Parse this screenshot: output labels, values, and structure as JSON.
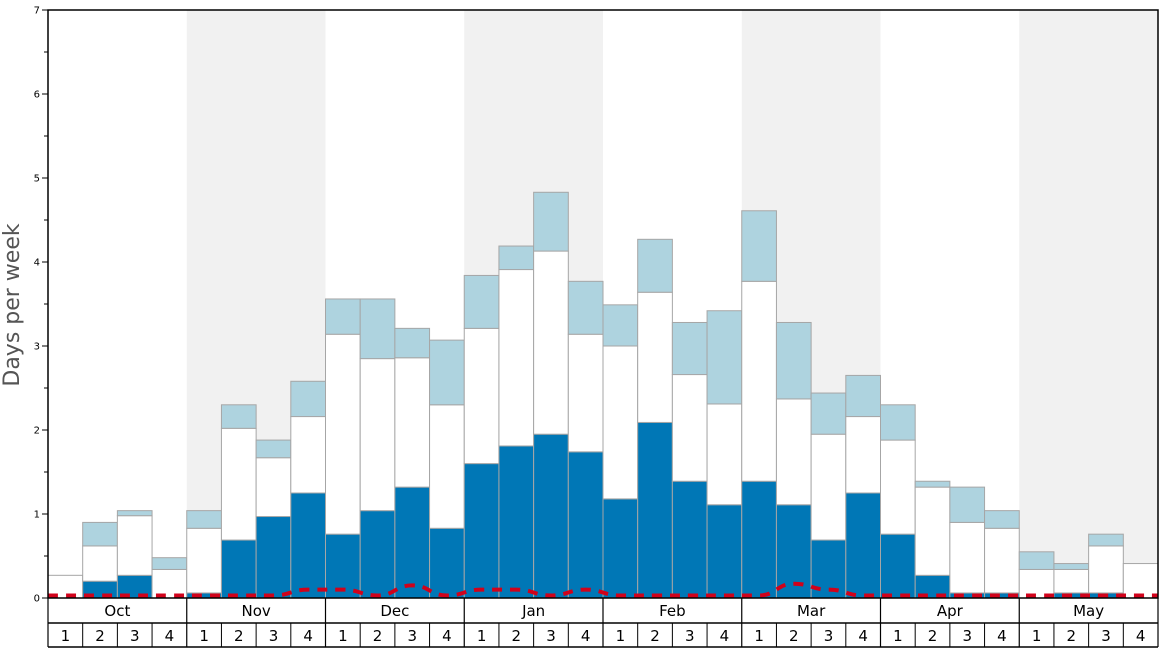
{
  "chart_data": {
    "type": "bar",
    "stacked": true,
    "ylabel": "Days per week",
    "ylim": [
      0,
      7
    ],
    "yticks": [
      "0",
      "1",
      "2",
      "3",
      "4",
      "5",
      "6",
      "7"
    ],
    "months": [
      "Oct",
      "Nov",
      "Dec",
      "Jan",
      "Feb",
      "Mar",
      "Apr",
      "May"
    ],
    "weeks": [
      "1",
      "2",
      "3",
      "4"
    ],
    "colors": {
      "dark": "#0077b6",
      "white": "#ffffff",
      "light": "#aed3df",
      "shade": "#f1f1f1",
      "line": "#d0021b"
    },
    "series": [
      {
        "key": "dark",
        "values": [
          0,
          0.2,
          0.27,
          0,
          0.06,
          0.69,
          0.97,
          1.25,
          0.76,
          1.04,
          1.32,
          0.83,
          1.6,
          1.81,
          1.95,
          1.74,
          1.18,
          2.09,
          1.39,
          1.11,
          1.39,
          1.11,
          0.69,
          1.25,
          0.76,
          0.27,
          0.06,
          0.06,
          0,
          0.06,
          0.06,
          0
        ]
      },
      {
        "key": "white",
        "values": [
          0.27,
          0.42,
          0.71,
          0.34,
          0.77,
          1.33,
          0.7,
          0.91,
          2.38,
          1.81,
          1.54,
          1.47,
          1.61,
          2.1,
          2.18,
          1.4,
          1.82,
          1.55,
          1.27,
          1.2,
          2.38,
          1.26,
          1.26,
          0.91,
          1.12,
          1.05,
          0.84,
          0.77,
          0.34,
          0.28,
          0.56,
          0.41
        ]
      },
      {
        "key": "light",
        "values": [
          0,
          0.28,
          0.06,
          0.14,
          0.21,
          0.28,
          0.21,
          0.42,
          0.42,
          0.71,
          0.35,
          0.77,
          0.63,
          0.28,
          0.7,
          0.63,
          0.49,
          0.63,
          0.62,
          1.11,
          0.84,
          0.91,
          0.49,
          0.49,
          0.42,
          0.07,
          0.42,
          0.21,
          0.21,
          0.07,
          0.14,
          0
        ]
      }
    ],
    "line": [
      0.03,
      0.03,
      0.03,
      0.03,
      0.03,
      0.03,
      0.03,
      0.1,
      0.1,
      0.03,
      0.15,
      0.03,
      0.1,
      0.1,
      0.03,
      0.1,
      0.03,
      0.03,
      0.03,
      0.03,
      0.03,
      0.17,
      0.1,
      0.03,
      0.03,
      0.03,
      0.03,
      0.03,
      0.03,
      0.03,
      0.03,
      0.03
    ]
  }
}
